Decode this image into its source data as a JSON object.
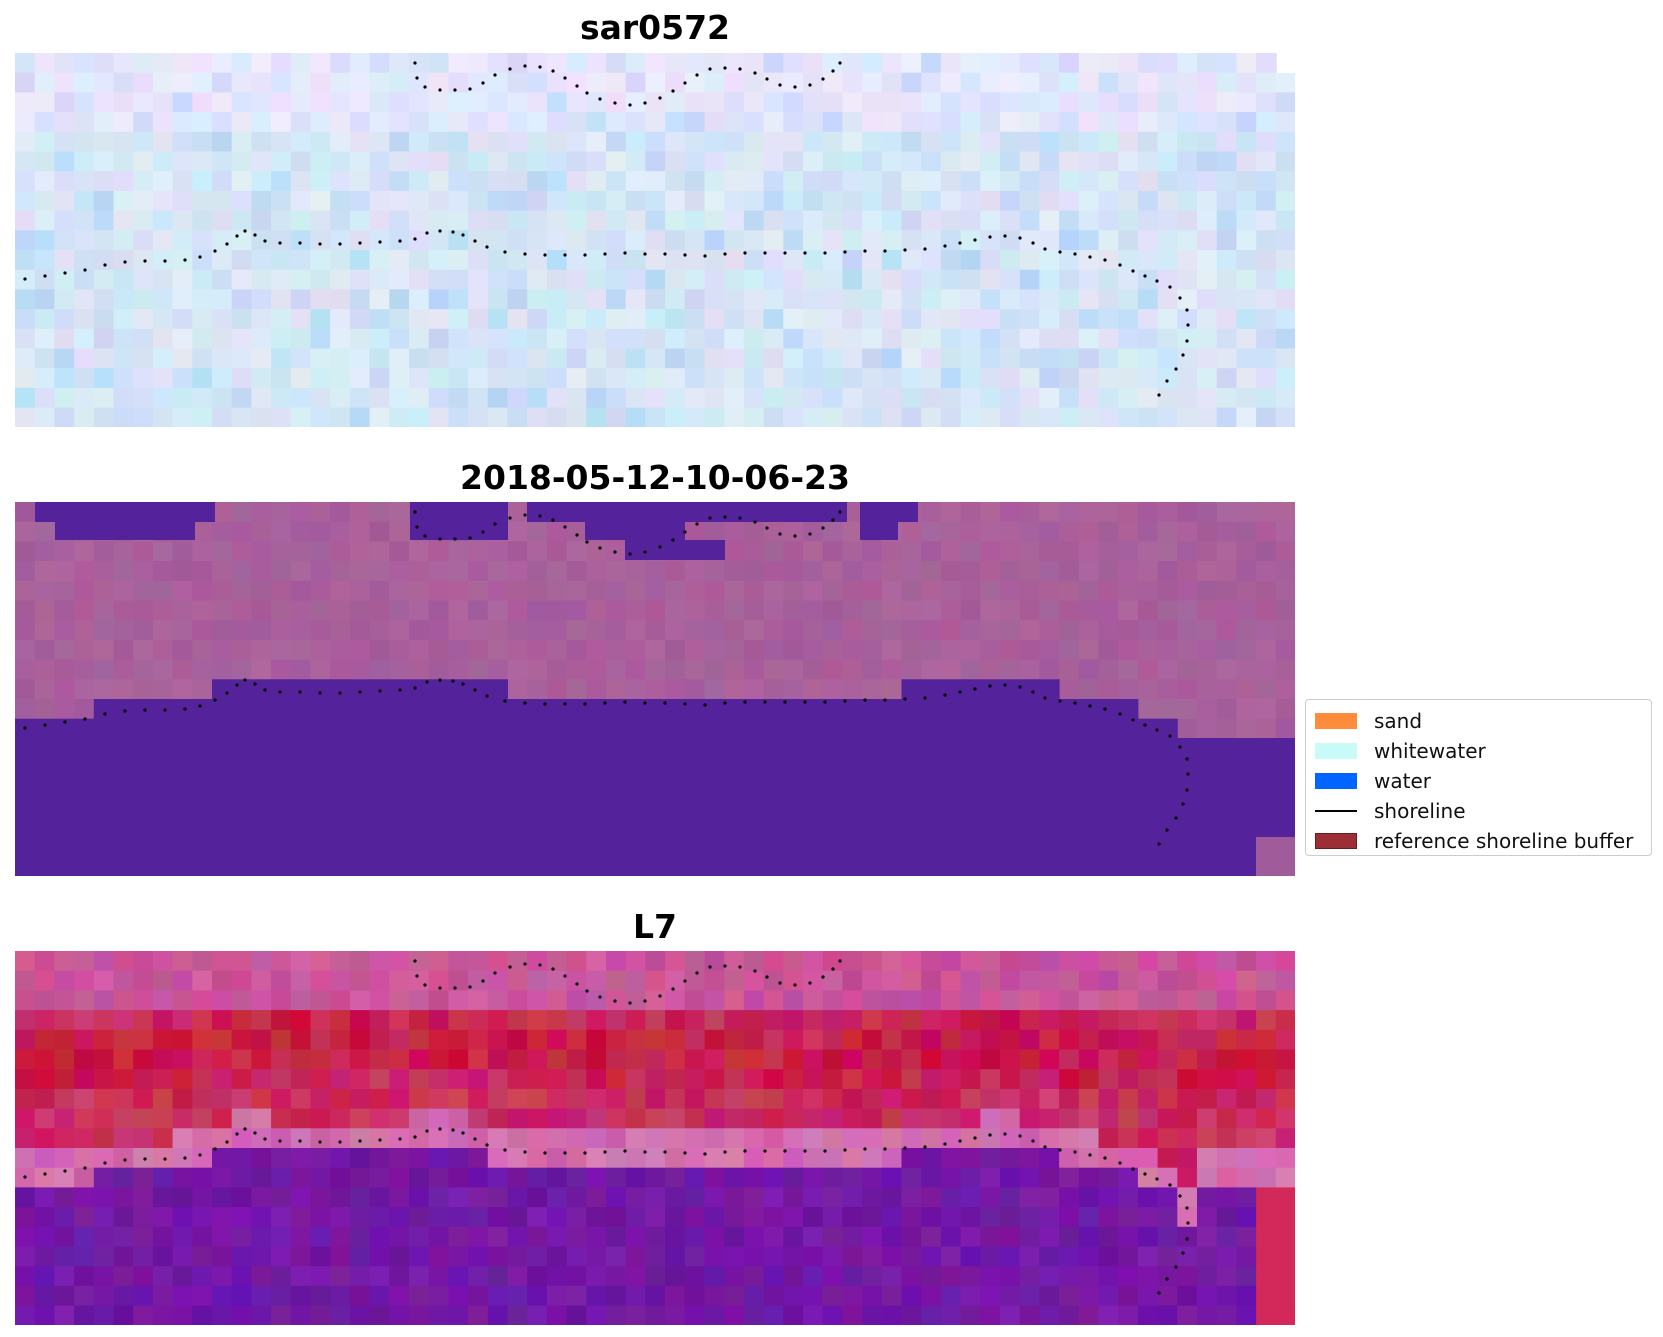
{
  "panels": [
    {
      "title": "sar0572",
      "style": "sar",
      "image_description_name": "sar-image"
    },
    {
      "title": "2018-05-12-10-06-23",
      "style": "classified",
      "image_description_name": "classified-image"
    },
    {
      "title": "L7",
      "style": "l7",
      "image_description_name": "l7-image"
    }
  ],
  "legend": {
    "items": [
      {
        "label": "sand",
        "kind": "patch",
        "color": "#ff8c3b"
      },
      {
        "label": "whitewater",
        "kind": "patch",
        "color": "#c8fbf8"
      },
      {
        "label": "water",
        "kind": "patch",
        "color": "#0064ff"
      },
      {
        "label": "shoreline",
        "kind": "line",
        "color": "#000000"
      },
      {
        "label": "reference shoreline buffer",
        "kind": "patch",
        "color": "#9c2f35",
        "edge": "#6e1a1f"
      }
    ]
  },
  "colors": {
    "sar_base": "#c9def1",
    "classified_land": "#a05c9a",
    "classified_water_class": "#54229a",
    "l7_red": "#c02055",
    "l7_purple": "#6a1a9c"
  }
}
